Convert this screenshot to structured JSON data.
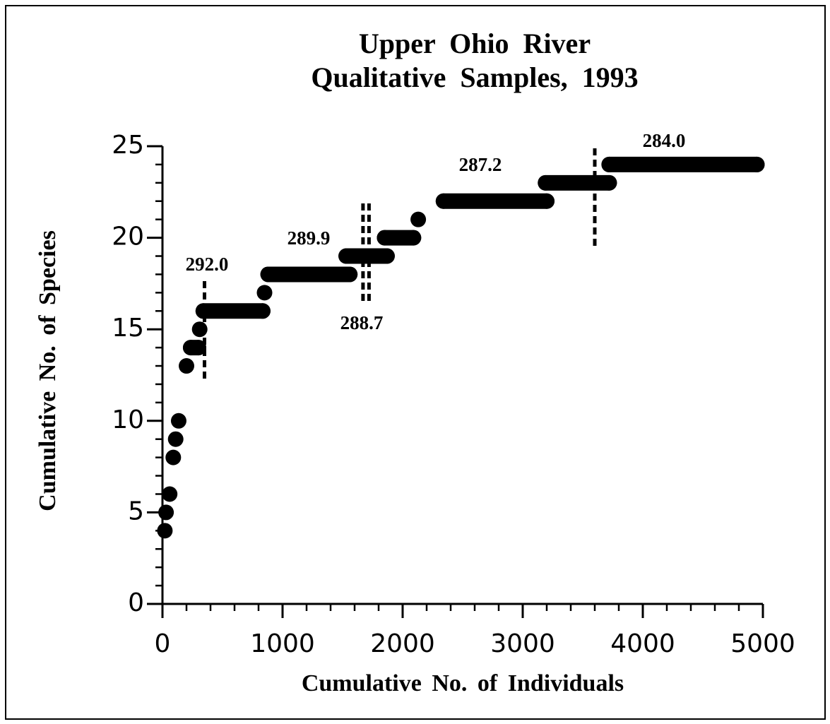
{
  "chart_data": {
    "type": "scatter",
    "title": [
      "Upper Ohio River",
      "Qualitative Samples, 1993"
    ],
    "x_label": "Cumulative No. of Individuals",
    "y_label": "Cumulative No. of Species",
    "x": [
      20,
      30,
      60,
      90,
      110,
      135,
      200,
      235,
      300,
      310,
      340,
      835,
      850,
      880,
      1560,
      1530,
      1870,
      1850,
      2090,
      2130,
      2340,
      3200,
      3190,
      3720,
      3720,
      4950
    ],
    "values": [
      4,
      5,
      6,
      8,
      9,
      10,
      13,
      14,
      14,
      15,
      16,
      16,
      17,
      18,
      18,
      19,
      19,
      20,
      20,
      21,
      22,
      22,
      23,
      23,
      24,
      24
    ],
    "color": "#000000",
    "xlim": [
      0,
      5000
    ],
    "ylim": [
      0,
      25
    ],
    "xticks": [
      0,
      1000,
      2000,
      3000,
      4000,
      5000
    ],
    "yticks": [
      0,
      5,
      10,
      15,
      20,
      25
    ],
    "xminorticks": [
      200,
      400,
      600,
      800,
      1200,
      1400,
      1600,
      1800,
      2200,
      2400,
      2600,
      2800,
      3200,
      3400,
      3600,
      3800,
      4200,
      4400,
      4600,
      4800
    ],
    "yminorticks": [
      1,
      2,
      3,
      4,
      6,
      7,
      8,
      9,
      11,
      12,
      13,
      14,
      16,
      17,
      18,
      19,
      21,
      22,
      23,
      24
    ],
    "annotations": [
      {
        "text": "292.0",
        "x": 350
      },
      {
        "text": "289.9",
        "x": 1670
      },
      {
        "text": "288.7",
        "x": 1720
      },
      {
        "text": "287.2"
      },
      {
        "text": "284.0",
        "x": 3600
      }
    ]
  }
}
